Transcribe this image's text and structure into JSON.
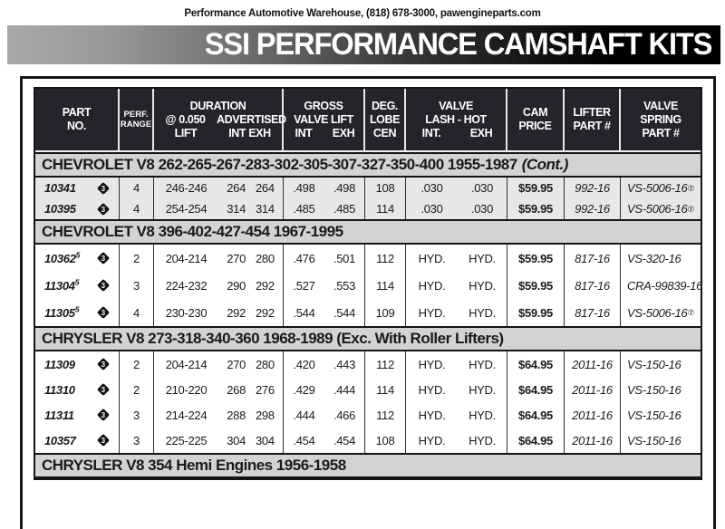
{
  "page": {
    "top_line": "Performance Automotive Warehouse, (818) 678-3000, pawengineparts.com",
    "banner_title": "SSI PERFORMANCE CAMSHAFT KITS",
    "colors": {
      "header_bg": "#24242d",
      "section_band_bg": "#d3d3d3",
      "shaded_rows_bg": "#e7e7e7",
      "banner_gradient_start": "#a9a9a9",
      "banner_gradient_end": "#000000",
      "text": "#1a1a1a"
    }
  },
  "table": {
    "header": {
      "part": [
        "PART",
        "NO."
      ],
      "perf": [
        "PERF.",
        "RANGE"
      ],
      "duration_title": "DURATION",
      "duration_sub1": [
        "@ 0.050",
        "LIFT"
      ],
      "duration_sub2": [
        "ADVERTISED",
        "INT  EXH"
      ],
      "gross": [
        "GROSS",
        "VALVE LIFT"
      ],
      "gross_sub": [
        "INT",
        "EXH"
      ],
      "deg": [
        "DEG.",
        "LOBE",
        "CEN"
      ],
      "lash": [
        "VALVE",
        "LASH - HOT"
      ],
      "lash_sub": [
        "INT.",
        "EXH"
      ],
      "price": [
        "CAM",
        "PRICE"
      ],
      "lifter": [
        "LIFTER",
        "PART #"
      ],
      "spring": [
        "VALVE",
        "SPRING",
        "PART #"
      ]
    },
    "sections": [
      {
        "title": "CHEVROLET V8 262-265-267-283-302-305-307-327-350-400 1955-1987",
        "title_suffix": "(Cont.)",
        "shaded": true,
        "rows": [
          {
            "part": "10341",
            "part_sup": "",
            "badge": "3",
            "perf": "4",
            "dur050": "246-246",
            "adv_int": "264",
            "adv_exh": "264",
            "lift_int": ".498",
            "lift_exh": ".498",
            "lobe": "108",
            "lash_int": ".030",
            "lash_exh": ".030",
            "price": "$59.95",
            "lifter": "992-16",
            "spring": "VS-5006-16",
            "spring_sup": "⑦"
          },
          {
            "part": "10395",
            "part_sup": "",
            "badge": "3",
            "perf": "4",
            "dur050": "254-254",
            "adv_int": "314",
            "adv_exh": "314",
            "lift_int": ".485",
            "lift_exh": ".485",
            "lobe": "114",
            "lash_int": ".030",
            "lash_exh": ".030",
            "price": "$59.95",
            "lifter": "992-16",
            "spring": "VS-5006-16",
            "spring_sup": "⑦"
          }
        ]
      },
      {
        "title": "CHEVROLET V8 396-402-427-454 1967-1995",
        "title_suffix": "",
        "shaded": false,
        "rows": [
          {
            "part": "10362",
            "part_sup": "5",
            "badge": "3",
            "perf": "2",
            "dur050": "204-214",
            "adv_int": "270",
            "adv_exh": "280",
            "lift_int": ".476",
            "lift_exh": ".501",
            "lobe": "112",
            "lash_int": "HYD.",
            "lash_exh": "HYD.",
            "price": "$59.95",
            "lifter": "817-16",
            "spring": "VS-320-16",
            "spring_sup": ""
          },
          {
            "part": "11304",
            "part_sup": "5",
            "badge": "3",
            "perf": "3",
            "dur050": "224-232",
            "adv_int": "290",
            "adv_exh": "292",
            "lift_int": ".527",
            "lift_exh": ".553",
            "lobe": "114",
            "lash_int": "HYD.",
            "lash_exh": "HYD.",
            "price": "$59.95",
            "lifter": "817-16",
            "spring": "CRA-99839-16",
            "spring_sup": ""
          },
          {
            "part": "11305",
            "part_sup": "5",
            "badge": "3",
            "perf": "4",
            "dur050": "230-230",
            "adv_int": "292",
            "adv_exh": "292",
            "lift_int": ".544",
            "lift_exh": ".544",
            "lobe": "109",
            "lash_int": "HYD.",
            "lash_exh": "HYD.",
            "price": "$59.95",
            "lifter": "817-16",
            "spring": "VS-5006-16",
            "spring_sup": "⑦"
          }
        ]
      },
      {
        "title": "CHRYSLER V8 273-318-340-360 1968-1989 (Exc. With Roller Lifters)",
        "title_suffix": "",
        "shaded": false,
        "rows": [
          {
            "part": "11309",
            "part_sup": "",
            "badge": "3",
            "perf": "2",
            "dur050": "204-214",
            "adv_int": "270",
            "adv_exh": "280",
            "lift_int": ".420",
            "lift_exh": ".443",
            "lobe": "112",
            "lash_int": "HYD.",
            "lash_exh": "HYD.",
            "price": "$64.95",
            "lifter": "2011-16",
            "spring": "VS-150-16",
            "spring_sup": ""
          },
          {
            "part": "11310",
            "part_sup": "",
            "badge": "3",
            "perf": "2",
            "dur050": "210-220",
            "adv_int": "268",
            "adv_exh": "276",
            "lift_int": ".429",
            "lift_exh": ".444",
            "lobe": "114",
            "lash_int": "HYD.",
            "lash_exh": "HYD.",
            "price": "$64.95",
            "lifter": "2011-16",
            "spring": "VS-150-16",
            "spring_sup": ""
          },
          {
            "part": "11311",
            "part_sup": "",
            "badge": "3",
            "perf": "3",
            "dur050": "214-224",
            "adv_int": "288",
            "adv_exh": "298",
            "lift_int": ".444",
            "lift_exh": ".466",
            "lobe": "112",
            "lash_int": "HYD.",
            "lash_exh": "HYD.",
            "price": "$64.95",
            "lifter": "2011-16",
            "spring": "VS-150-16",
            "spring_sup": ""
          },
          {
            "part": "10357",
            "part_sup": "",
            "badge": "3",
            "perf": "3",
            "dur050": "225-225",
            "adv_int": "304",
            "adv_exh": "304",
            "lift_int": ".454",
            "lift_exh": ".454",
            "lobe": "108",
            "lash_int": "HYD.",
            "lash_exh": "HYD.",
            "price": "$64.95",
            "lifter": "2011-16",
            "spring": "VS-150-16",
            "spring_sup": ""
          }
        ]
      },
      {
        "title": "CHRYSLER V8 354 Hemi Engines 1956-1958",
        "title_suffix": "",
        "shaded": false,
        "rows": []
      }
    ]
  }
}
